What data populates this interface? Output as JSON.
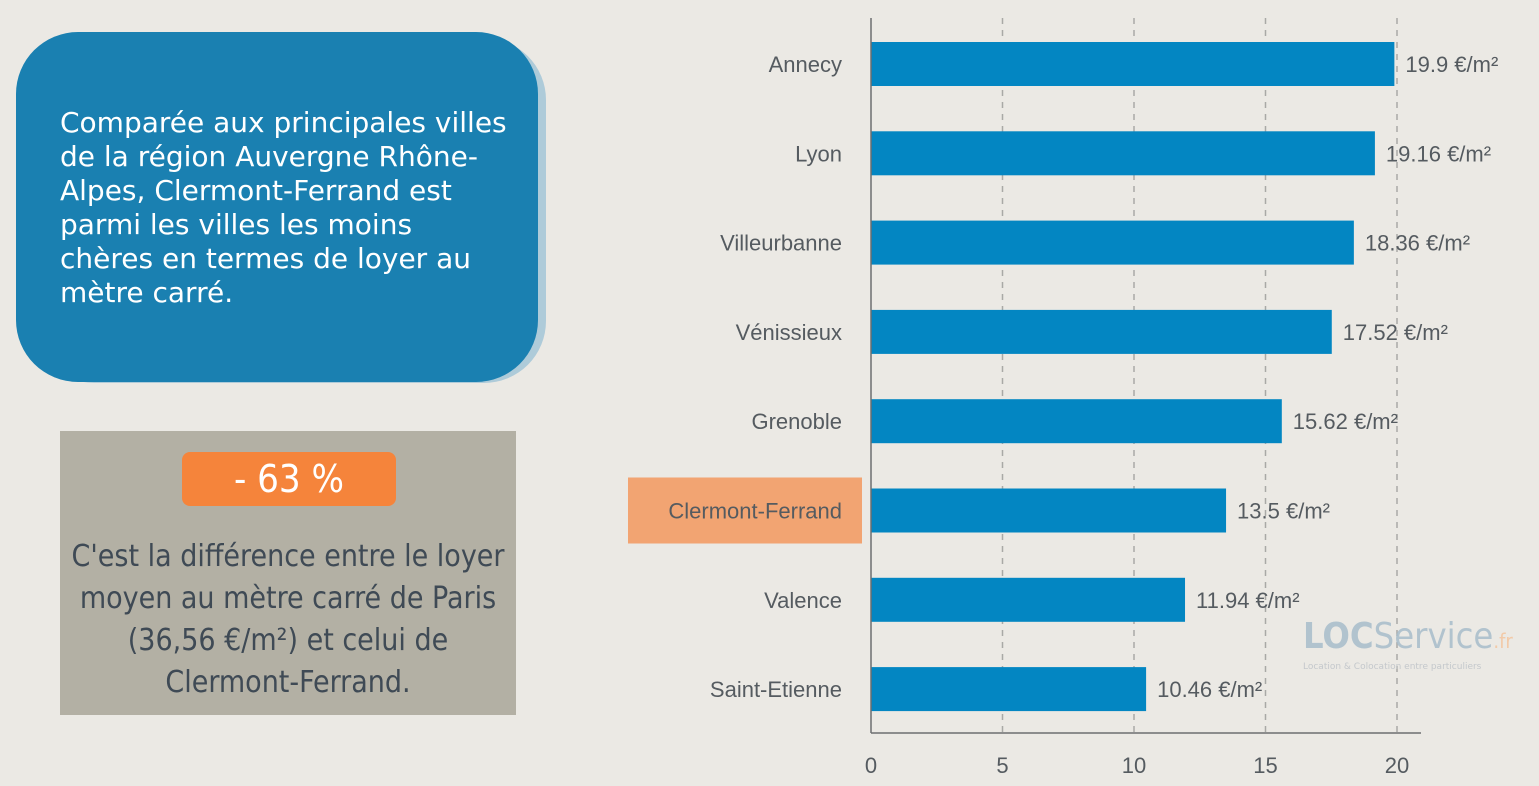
{
  "intro_text": "Comparée aux principales villes de la région Auvergne Rhône-Alpes, Clermont-Ferrand est parmi les villes les moins chères en termes de loyer au mètre carré.",
  "difference": {
    "badge": "- 63 %",
    "text": "C'est la différence entre le loyer moyen au mètre carré de Paris (36,56 €/m²) et celui de Clermont-Ferrand."
  },
  "logo": {
    "bold": "LOC",
    "rest": "Service",
    "suffix": ".fr",
    "tagline": "Location & Colocation entre particuliers"
  },
  "colors": {
    "bar": "#0386c2",
    "highlight": "#f2a472",
    "background": "#ebe9e4"
  },
  "chart_data": {
    "type": "bar",
    "orientation": "horizontal",
    "categories": [
      "Annecy",
      "Lyon",
      "Villeurbanne",
      "Vénissieux",
      "Grenoble",
      "Clermont-Ferrand",
      "Valence",
      "Saint-Etienne"
    ],
    "values": [
      19.9,
      19.16,
      18.36,
      17.52,
      15.62,
      13.5,
      11.94,
      10.46
    ],
    "value_labels": [
      "19.9 €/m²",
      "19.16 €/m²",
      "18.36 €/m²",
      "17.52 €/m²",
      "15.62 €/m²",
      "13.5 €/m²",
      "11.94 €/m²",
      "10.46 €/m²"
    ],
    "highlight_category": "Clermont-Ferrand",
    "xlim": [
      0,
      20
    ],
    "xticks": [
      0,
      5,
      10,
      15,
      20
    ],
    "grid": "vertical dashed",
    "title": "",
    "xlabel": "",
    "ylabel": ""
  }
}
